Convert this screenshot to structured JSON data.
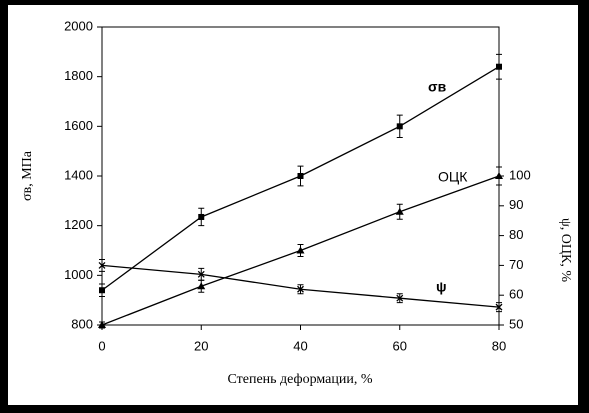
{
  "chart_data": {
    "type": "line",
    "x_label": "Степень деформации, %",
    "y_label": "σв, МПа",
    "y2_label": "ψ, ОЦК, %",
    "xlim": [
      0,
      80
    ],
    "xticks": [
      0,
      20,
      40,
      60,
      80
    ],
    "ylim": [
      800,
      2000
    ],
    "yticks": [
      800,
      1000,
      1200,
      1400,
      1600,
      1800,
      2000
    ],
    "y2lim": [
      50,
      150
    ],
    "y2ticks": [
      50,
      60,
      70,
      80,
      90,
      100
    ],
    "x": [
      0,
      20,
      40,
      60,
      80
    ],
    "series": [
      {
        "name": "σв",
        "color": "#000000",
        "marker": "square",
        "values": [
          940,
          1235,
          1400,
          1600,
          1840
        ],
        "errors": [
          25,
          35,
          40,
          45,
          50
        ]
      },
      {
        "name": "ОЦК",
        "color": "#000000",
        "marker": "triangle",
        "axis": "y2",
        "values": [
          50,
          63,
          75,
          88,
          100
        ],
        "errors": [
          1,
          2,
          2,
          2.5,
          3
        ]
      },
      {
        "name": "ψ",
        "color": "#000000",
        "marker": "x",
        "axis": "y2",
        "values": [
          70,
          67,
          62,
          59,
          56
        ],
        "errors": [
          2,
          2,
          1.5,
          1.5,
          1.5
        ]
      }
    ]
  }
}
